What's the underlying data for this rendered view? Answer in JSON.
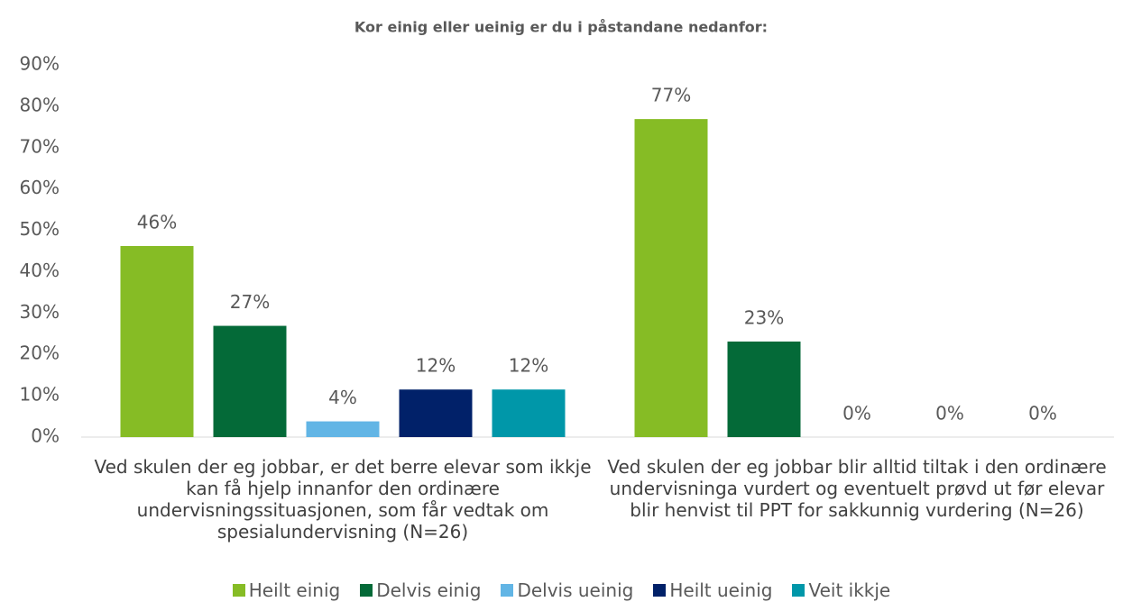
{
  "chart_data": {
    "type": "bar",
    "title": "Kor einig eller ueinig er du i påstandane nedanfor:",
    "categories": [
      "Ved skulen der eg jobbar, er det berre elevar som ikkje kan få hjelp innanfor den ordinære undervisningssituasjonen, som får vedtak om spesialundervisning (N=26)",
      "Ved skulen der eg jobbar blir alltid tiltak i den ordinære undervisninga vurdert og eventuelt prøvd ut før elevar blir henvist til PPT for sakkunnig vurdering (N=26)"
    ],
    "series": [
      {
        "name": "Heilt einig",
        "color": "#86bc25",
        "values": [
          46.2,
          76.9
        ],
        "value_labels": [
          "46%",
          "77%"
        ]
      },
      {
        "name": "Delvis einig",
        "color": "#046a38",
        "values": [
          26.9,
          23.1
        ],
        "value_labels": [
          "27%",
          "23%"
        ]
      },
      {
        "name": "Delvis ueinig",
        "color": "#62b5e5",
        "values": [
          3.8,
          0
        ],
        "value_labels": [
          "4%",
          "0%"
        ]
      },
      {
        "name": "Heilt ueinig",
        "color": "#012169",
        "values": [
          11.5,
          0
        ],
        "value_labels": [
          "12%",
          "0%"
        ]
      },
      {
        "name": "Veit ikkje",
        "color": "#0097a9",
        "values": [
          11.5,
          0
        ],
        "value_labels": [
          "12%",
          "0%"
        ]
      }
    ],
    "ylim": [
      0,
      90
    ],
    "yticks": [
      {
        "value": 0,
        "label": "0%"
      },
      {
        "value": 10,
        "label": "10%"
      },
      {
        "value": 20,
        "label": "20%"
      },
      {
        "value": 30,
        "label": "30%"
      },
      {
        "value": 40,
        "label": "40%"
      },
      {
        "value": 50,
        "label": "50%"
      },
      {
        "value": 60,
        "label": "60%"
      },
      {
        "value": 70,
        "label": "70%"
      },
      {
        "value": 80,
        "label": "80%"
      },
      {
        "value": 90,
        "label": "90%"
      }
    ],
    "grid": false,
    "legend": "bottom"
  }
}
